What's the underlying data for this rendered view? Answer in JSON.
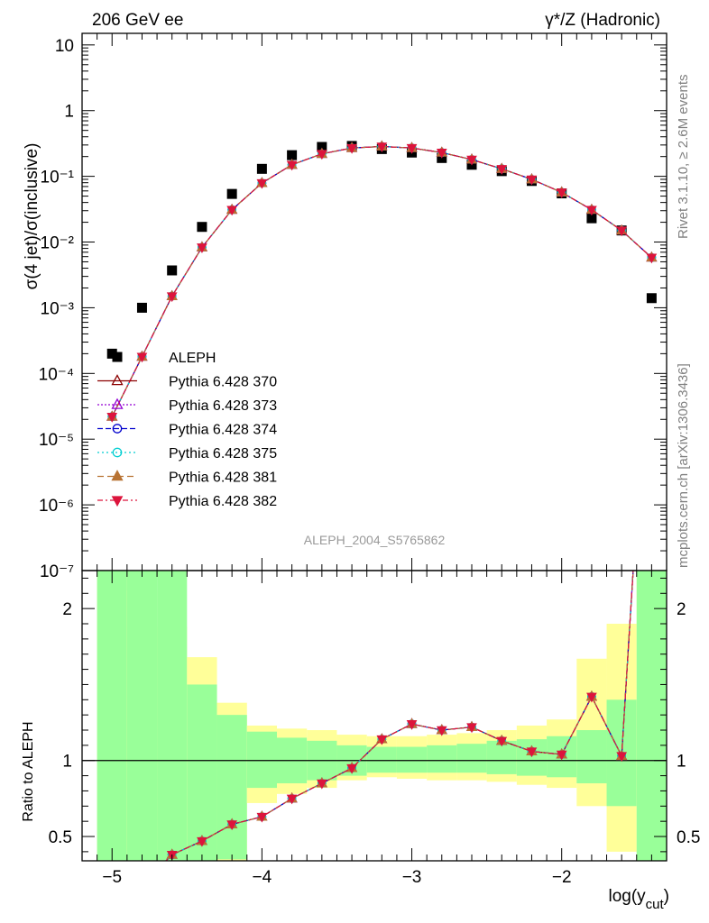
{
  "header": {
    "left": "206 GeV ee",
    "right": "γ*/Z (Hadronic)"
  },
  "side_labels": {
    "rivet": "Rivet 3.1.10, ≥ 2.6M events",
    "mcplots": "mcplots.cern.ch [arXiv:1306.3436]"
  },
  "watermark": "ALEPH_2004_S5765862",
  "chart_data": [
    {
      "type": "scatter",
      "panel": "main",
      "ylabel": "σ(4 jet)/σ(inclusive)",
      "yscale": "log",
      "xlim": [
        -5.2,
        -1.3
      ],
      "ylim": [
        1e-07,
        15
      ],
      "y_tick_labels": [
        "10⁻⁷",
        "10⁻⁶",
        "10⁻⁵",
        "10⁻⁴",
        "10⁻³",
        "10⁻²",
        "10⁻¹",
        "1",
        "10"
      ],
      "legend_position": "left-middle",
      "x": [
        -5.0,
        -4.8,
        -4.6,
        -4.4,
        -4.2,
        -4.0,
        -3.8,
        -3.6,
        -3.4,
        -3.2,
        -3.0,
        -2.8,
        -2.6,
        -2.4,
        -2.2,
        -2.0,
        -1.8,
        -1.6,
        -1.4
      ],
      "series": [
        {
          "name": "ALEPH",
          "color": "#000000",
          "marker": "square",
          "values": [
            0.0002,
            0.001,
            0.0037,
            0.017,
            0.054,
            0.13,
            0.21,
            0.28,
            0.29,
            0.26,
            0.23,
            0.19,
            0.15,
            0.12,
            0.085,
            0.055,
            0.023,
            0.015,
            0.0014
          ]
        },
        {
          "name": "Pythia 6.428 370",
          "color": "#8b0000",
          "marker": "triangle-open",
          "values": [
            2.2e-05,
            0.00018,
            0.0015,
            0.0083,
            0.031,
            0.079,
            0.15,
            0.22,
            0.27,
            0.285,
            0.27,
            0.23,
            0.18,
            0.13,
            0.09,
            0.057,
            0.031,
            0.015,
            0.0058
          ]
        },
        {
          "name": "Pythia 6.428 373",
          "color": "#9400d3",
          "marker": "triangle-open",
          "values": [
            2.2e-05,
            0.00018,
            0.0015,
            0.0083,
            0.031,
            0.079,
            0.15,
            0.22,
            0.27,
            0.285,
            0.27,
            0.23,
            0.18,
            0.13,
            0.09,
            0.057,
            0.031,
            0.015,
            0.0058
          ]
        },
        {
          "name": "Pythia 6.428 374",
          "color": "#0000cd",
          "marker": "circle-open",
          "values": [
            2.2e-05,
            0.00018,
            0.0015,
            0.0083,
            0.031,
            0.079,
            0.15,
            0.22,
            0.27,
            0.285,
            0.27,
            0.23,
            0.18,
            0.13,
            0.09,
            0.057,
            0.031,
            0.015,
            0.0058
          ]
        },
        {
          "name": "Pythia 6.428 375",
          "color": "#00ced1",
          "marker": "circle-open",
          "values": [
            2.2e-05,
            0.00018,
            0.0015,
            0.0083,
            0.031,
            0.079,
            0.15,
            0.22,
            0.27,
            0.285,
            0.27,
            0.23,
            0.18,
            0.13,
            0.09,
            0.057,
            0.031,
            0.015,
            0.0058
          ]
        },
        {
          "name": "Pythia 6.428 381",
          "color": "#b87333",
          "marker": "triangle-filled",
          "values": [
            2.2e-05,
            0.00018,
            0.0015,
            0.0083,
            0.031,
            0.079,
            0.15,
            0.22,
            0.27,
            0.285,
            0.27,
            0.23,
            0.18,
            0.13,
            0.09,
            0.057,
            0.031,
            0.015,
            0.0058
          ]
        },
        {
          "name": "Pythia 6.428 382",
          "color": "#dc143c",
          "marker": "triangle-down-filled",
          "values": [
            2.2e-05,
            0.00018,
            0.0015,
            0.0083,
            0.031,
            0.079,
            0.15,
            0.22,
            0.27,
            0.285,
            0.27,
            0.23,
            0.18,
            0.13,
            0.09,
            0.057,
            0.031,
            0.015,
            0.0058
          ]
        }
      ]
    },
    {
      "type": "line",
      "panel": "ratio",
      "xlabel": "log(y_cut)",
      "ylabel": "Ratio to ALEPH",
      "xlim": [
        -5.2,
        -1.3
      ],
      "ylim": [
        0.34,
        2.25
      ],
      "x_ticks": [
        -5,
        -4,
        -3,
        -2
      ],
      "x_tick_labels": [
        "−5",
        "−4",
        "−3",
        "−2"
      ],
      "y_ticks": [
        0.5,
        1,
        2
      ],
      "y_tick_labels": [
        "0.5",
        "1",
        "2"
      ],
      "x": [
        -5.0,
        -4.8,
        -4.6,
        -4.4,
        -4.2,
        -4.0,
        -3.8,
        -3.6,
        -3.4,
        -3.2,
        -3.0,
        -2.8,
        -2.6,
        -2.4,
        -2.2,
        -2.0,
        -1.8,
        -1.6,
        -1.4
      ],
      "ratio_values": [
        0.11,
        0.18,
        0.38,
        0.47,
        0.58,
        0.63,
        0.75,
        0.85,
        0.95,
        1.14,
        1.24,
        1.2,
        1.22,
        1.13,
        1.06,
        1.04,
        1.42,
        1.03,
        4.2
      ],
      "bands": {
        "edges": [
          -5.1,
          -4.9,
          -4.7,
          -4.5,
          -4.3,
          -4.1,
          -3.9,
          -3.7,
          -3.5,
          -3.3,
          -3.1,
          -2.9,
          -2.7,
          -2.5,
          -2.3,
          -2.1,
          -1.9,
          -1.7,
          -1.5,
          -1.3
        ],
        "stat_color": "#99ff99",
        "syst_color": "#ffff99",
        "stat_lo": [
          0.0,
          0.0,
          0.0,
          0.0,
          0.35,
          0.82,
          0.85,
          0.87,
          0.9,
          0.92,
          0.92,
          0.92,
          0.92,
          0.91,
          0.9,
          0.89,
          0.85,
          0.7,
          0.0
        ],
        "stat_hi": [
          3.0,
          3.0,
          3.0,
          1.5,
          1.3,
          1.19,
          1.15,
          1.13,
          1.1,
          1.09,
          1.09,
          1.1,
          1.11,
          1.13,
          1.14,
          1.16,
          1.2,
          1.4,
          3.0
        ],
        "syst_lo": [
          0.0,
          0.0,
          0.0,
          0.3,
          0.3,
          0.72,
          0.78,
          0.82,
          0.87,
          0.89,
          0.88,
          0.87,
          0.87,
          0.86,
          0.84,
          0.82,
          0.7,
          0.4,
          0.0
        ],
        "syst_hi": [
          3.0,
          2.12,
          1.88,
          1.68,
          1.38,
          1.23,
          1.21,
          1.2,
          1.17,
          1.16,
          1.16,
          1.17,
          1.18,
          1.2,
          1.23,
          1.27,
          1.67,
          1.9,
          3.0
        ]
      }
    }
  ]
}
